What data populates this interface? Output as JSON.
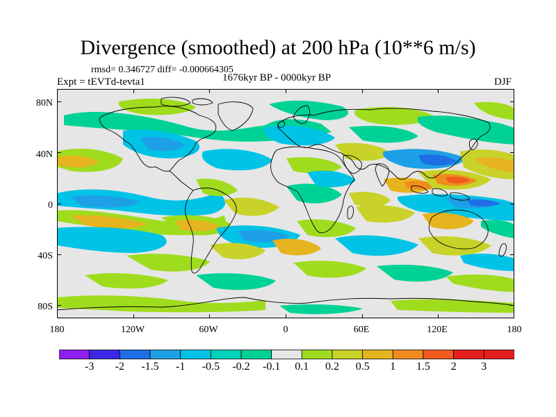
{
  "title": "Divergence (smoothed) at 200 hPa (10**6 m/s)",
  "stats": "rmsd= 0.346727 diff= -0.000664305",
  "experiment": "Expt = tEVTd-tevta1",
  "period": "1676kyr BP - 0000kyr BP",
  "season": "DJF",
  "lat_ticks": [
    "80N",
    "40N",
    "0",
    "40S",
    "80S"
  ],
  "lon_ticks": [
    "180",
    "120W",
    "60W",
    "0",
    "60E",
    "120E",
    "180"
  ],
  "colorbar": {
    "labels": [
      "-3",
      "-2",
      "-1.5",
      "-1",
      "-0.5",
      "-0.2",
      "-0.1",
      "0.1",
      "0.2",
      "0.5",
      "1",
      "1.5",
      "2",
      "3"
    ],
    "colors": [
      "#8f1ef0",
      "#3c28e6",
      "#1e6ee6",
      "#1ea0e6",
      "#00c3e6",
      "#00d2b9",
      "#00d296",
      "#e6e6e6",
      "#a0dc1e",
      "#c8d228",
      "#e6b41e",
      "#f08c1e",
      "#f05a1e",
      "#e61e1e",
      "#e61e1e"
    ]
  },
  "field_colors": {
    "neutral": "#e6e6e6",
    "neg_weak": "#00d296",
    "neg_mid": "#00c3e6",
    "neg_strong": "#1ea0e6",
    "neg_vstrong": "#1e6ee6",
    "pos_weak": "#a0dc1e",
    "pos_mid": "#c8d228",
    "pos_strong": "#e6b41e",
    "pos_vstrong": "#f08c1e",
    "pos_max": "#f05a1e",
    "coast": "#000000"
  }
}
